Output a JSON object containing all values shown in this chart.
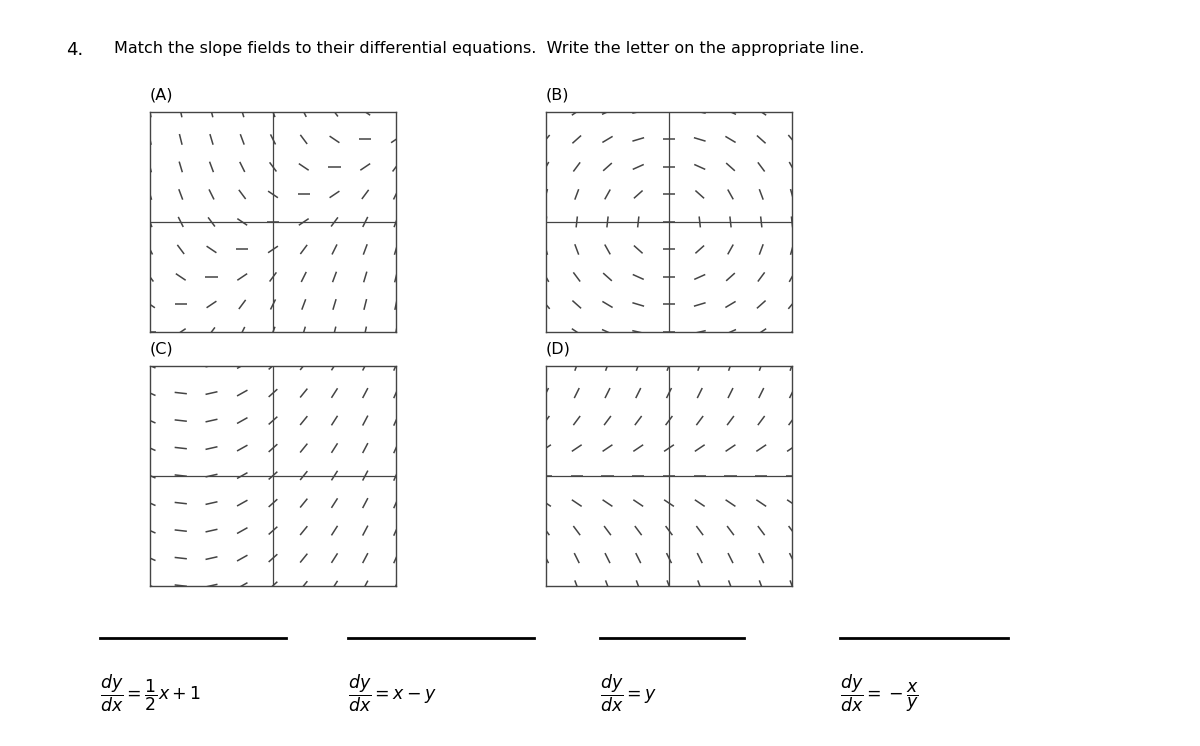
{
  "title_number": "4.",
  "title_text": "Match the slope fields to their differential equations.  Write the letter on the appropriate line.",
  "panel_labels": [
    "(A)",
    "(B)",
    "(C)",
    "(D)"
  ],
  "eq_texts": [
    "\\dfrac{dy}{dx} = \\dfrac{1}{2}x + 1",
    "\\dfrac{dy}{dx} = x - y",
    "\\dfrac{dy}{dx} = y",
    "\\dfrac{dy}{dx} = -\\dfrac{x}{y}"
  ],
  "grid_color": "#444444",
  "bg_color": "#ffffff",
  "x_range": [
    -3,
    3
  ],
  "y_range": [
    -3,
    3
  ],
  "n_arrows": 9
}
